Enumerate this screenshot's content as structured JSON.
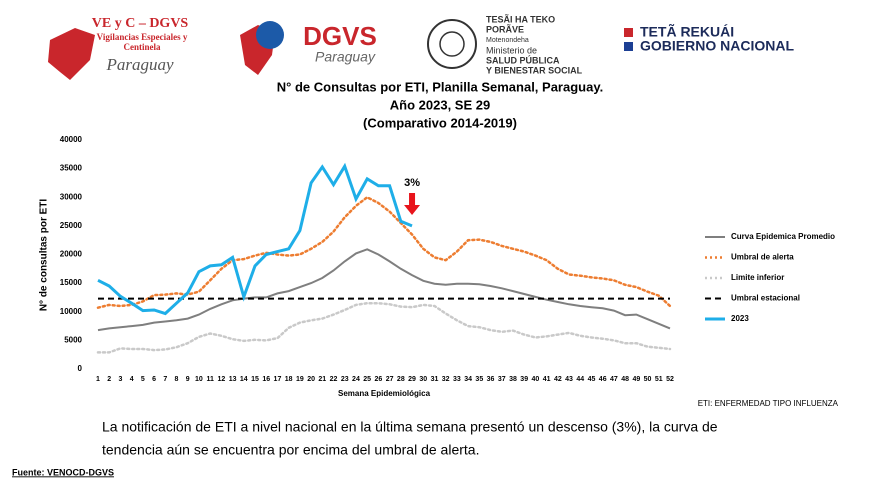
{
  "header": {
    "logo1": [
      "VE y C – DGVS",
      "Vigilancias Especiales y",
      "Centinela",
      "Paraguay"
    ],
    "logo2": [
      "DGVS",
      "Paraguay"
    ],
    "logo3": [
      "TESÃI HA TEKO",
      "PORÃVE",
      "Motenondeha",
      "Ministerio de",
      "SALUD PÚBLICA",
      "Y BIENESTAR SOCIAL"
    ],
    "logo4": [
      "TETÃ REKUÁI",
      "GOBIERNO NACIONAL"
    ]
  },
  "chart_data": {
    "type": "line",
    "title": "N° de Consultas por ETI, Planilla Semanal, Paraguay.",
    "subtitle": [
      "Año 2023, SE 29",
      "(Comparativo 2014-2019)"
    ],
    "xlabel": "Semana Epidemiológica",
    "ylabel": "N° de consultas por ETI",
    "annotation": "3%",
    "categories": [
      "1",
      "2",
      "3",
      "4",
      "5",
      "6",
      "7",
      "8",
      "9",
      "10",
      "11",
      "12",
      "13",
      "14",
      "15",
      "16",
      "17",
      "18",
      "19",
      "20",
      "21",
      "22",
      "23",
      "24",
      "25",
      "26",
      "27",
      "28",
      "29",
      "30",
      "31",
      "32",
      "33",
      "34",
      "35",
      "36",
      "37",
      "38",
      "39",
      "40",
      "41",
      "42",
      "43",
      "44",
      "45",
      "46",
      "47",
      "48",
      "49",
      "50",
      "51",
      "52"
    ],
    "ylim": [
      0,
      40000
    ],
    "yticks": [
      0,
      5000,
      10000,
      15000,
      20000,
      25000,
      30000,
      35000,
      40000
    ],
    "grid": false,
    "legend": "right",
    "series": [
      {
        "name": "Curva Epidemica Promedio",
        "color": "#7f7f7f",
        "dash": "solid",
        "width": 2,
        "values": [
          6800,
          7100,
          7300,
          7500,
          7700,
          8100,
          8300,
          8500,
          8800,
          9500,
          10500,
          11300,
          12000,
          12300,
          12500,
          12500,
          13200,
          13600,
          14300,
          15000,
          15900,
          17200,
          18800,
          20200,
          20900,
          20000,
          18800,
          17500,
          16400,
          15400,
          14900,
          14700,
          14900,
          14900,
          14800,
          14500,
          14100,
          13600,
          13100,
          12600,
          12100,
          11700,
          11300,
          11000,
          10800,
          10600,
          10200,
          9400,
          9500,
          8700,
          7900,
          7100
        ]
      },
      {
        "name": "Umbral de alerta",
        "color": "#ed7d31",
        "dash": "dotted",
        "width": 2.5,
        "values": [
          10700,
          11200,
          11000,
          11200,
          11800,
          12900,
          13000,
          13200,
          13000,
          13500,
          15500,
          17500,
          19000,
          19200,
          19800,
          20300,
          20000,
          19800,
          20000,
          21000,
          22200,
          24000,
          26500,
          28500,
          30000,
          29000,
          27500,
          25500,
          23500,
          21000,
          19500,
          19000,
          20500,
          22500,
          22600,
          22200,
          21500,
          21000,
          20500,
          19800,
          19000,
          17500,
          16500,
          16300,
          16000,
          15800,
          15500,
          14700,
          14300,
          13500,
          12800,
          11000
        ]
      },
      {
        "name": "Limite inferior",
        "color": "#c9c9c9",
        "dash": "dotted",
        "width": 2.5,
        "values": [
          2900,
          2900,
          3600,
          3500,
          3500,
          3300,
          3400,
          3800,
          4500,
          5600,
          6200,
          5800,
          5200,
          4900,
          5100,
          5000,
          5400,
          7200,
          8100,
          8500,
          8800,
          9500,
          10300,
          11200,
          11500,
          11500,
          11300,
          10900,
          10800,
          11200,
          11000,
          9700,
          8500,
          7500,
          7300,
          6800,
          6500,
          6700,
          6000,
          5500,
          5700,
          6000,
          6300,
          5800,
          5500,
          5300,
          5000,
          4500,
          4500,
          3900,
          3700,
          3500
        ]
      },
      {
        "name": "Umbral estacional",
        "color": "#000000",
        "dash": "dashed",
        "width": 2,
        "values": [
          12300,
          12300,
          12300,
          12300,
          12300,
          12300,
          12300,
          12300,
          12300,
          12300,
          12300,
          12300,
          12300,
          12300,
          12300,
          12300,
          12300,
          12300,
          12300,
          12300,
          12300,
          12300,
          12300,
          12300,
          12300,
          12300,
          12300,
          12300,
          12300,
          12300,
          12300,
          12300,
          12300,
          12300,
          12300,
          12300,
          12300,
          12300,
          12300,
          12300,
          12300,
          12300,
          12300,
          12300,
          12300,
          12300,
          12300,
          12300,
          12300,
          12300,
          12300,
          12300
        ]
      },
      {
        "name": "2023",
        "color": "#1eaee8",
        "dash": "solid",
        "width": 3,
        "values": [
          15500,
          14500,
          12700,
          11500,
          10200,
          10300,
          9700,
          11500,
          13300,
          17000,
          18000,
          18200,
          19500,
          12600,
          18000,
          20000,
          20500,
          21000,
          24200,
          32500,
          35300,
          32200,
          35400,
          29700,
          33200,
          32000,
          32000,
          25800,
          25000,
          null,
          null,
          null,
          null,
          null,
          null,
          null,
          null,
          null,
          null,
          null,
          null,
          null,
          null,
          null,
          null,
          null,
          null,
          null,
          null,
          null,
          null,
          null
        ]
      }
    ]
  },
  "eti_note": "ETI: ENFERMEDAD TIPO INFLUENZA",
  "note": [
    "La notificación de ETI a nivel nacional en la última semana presentó un descenso (3%), la curva de",
    "tendencia aún se encuentra  por encima del umbral de alerta."
  ],
  "source": "Fuente: VENOCD-DGVS"
}
